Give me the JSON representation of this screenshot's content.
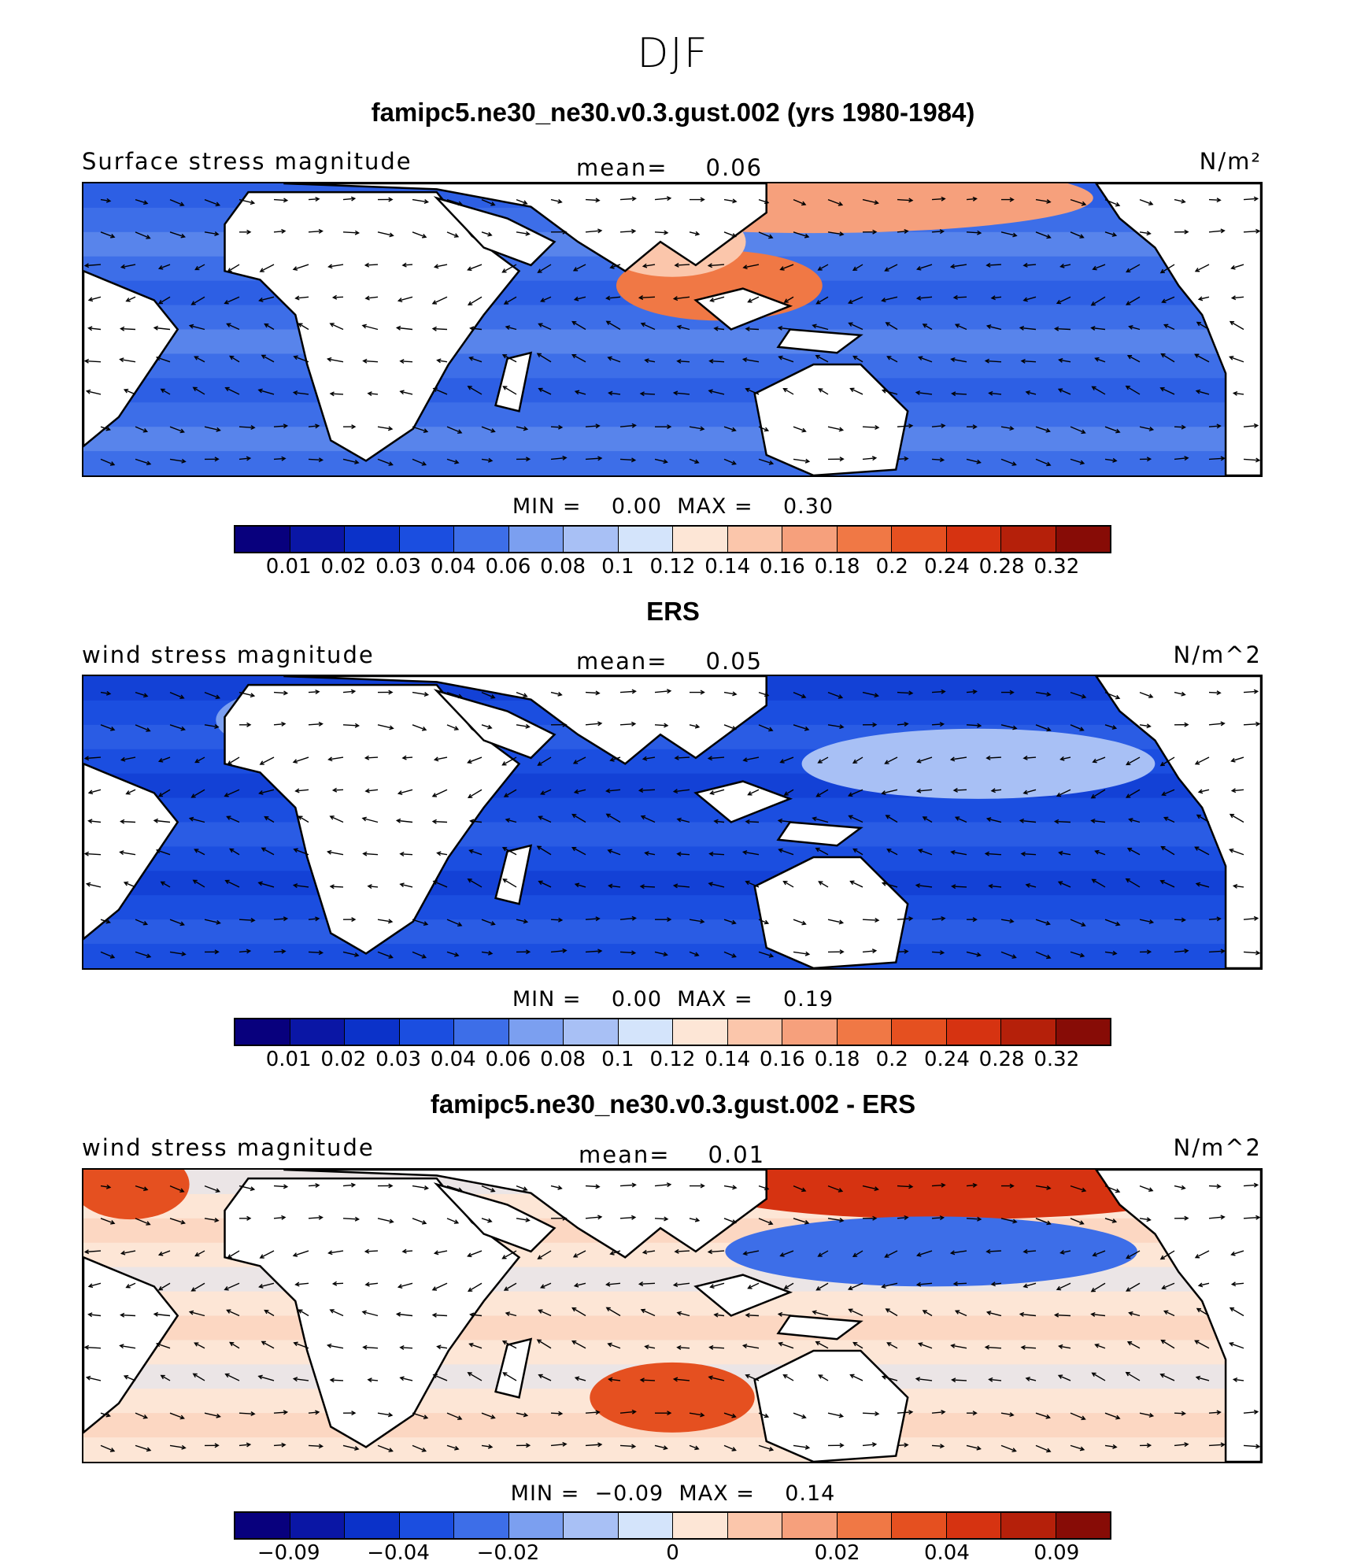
{
  "title": "DJF",
  "colors": [
    "#08007d",
    "#0a16a5",
    "#0b32c9",
    "#1b4ee0",
    "#3d6ee8",
    "#7b9ff0",
    "#a8c0f5",
    "#d4e4fb",
    "#fde6d6",
    "#fbc6ab",
    "#f6a07c",
    "#f07845",
    "#e55020",
    "#d63311",
    "#b5200a",
    "#870c06"
  ],
  "land_color": "#ffffff",
  "panels": [
    {
      "title": "famipc5.ne30_ne30.v0.3.gust.002 (yrs 1980-1984)",
      "field_label": "Surface stress magnitude",
      "mean_label": "mean=",
      "mean_value": "0.06",
      "units": "N/m²",
      "min_max": "MIN =    0.00  MAX =    0.30",
      "colorbar_ticks": [
        "0.01",
        "0.02",
        "0.03",
        "0.04",
        "0.06",
        "0.08",
        "0.1",
        "0.12",
        "0.14",
        "0.16",
        "0.18",
        "0.2",
        "0.24",
        "0.28",
        "0.32"
      ],
      "ocean_level": 4,
      "hotspots": [
        [
          0.62,
          0.05,
          0.95,
          10
        ],
        [
          0.54,
          0.35,
          0.35,
          11
        ],
        [
          0.5,
          0.2,
          0.25,
          9
        ]
      ]
    },
    {
      "title": "ERS",
      "field_label": "wind stress magnitude",
      "mean_label": "mean=",
      "mean_value": "0.05",
      "units": "N/m^2",
      "min_max": "MIN =    0.00  MAX =    0.19",
      "colorbar_ticks": [
        "0.01",
        "0.02",
        "0.03",
        "0.04",
        "0.06",
        "0.08",
        "0.1",
        "0.12",
        "0.14",
        "0.16",
        "0.18",
        "0.2",
        "0.24",
        "0.28",
        "0.32"
      ],
      "ocean_level": 3,
      "hotspots": [
        [
          0.76,
          0.3,
          0.6,
          6
        ],
        [
          0.2,
          0.15,
          0.35,
          5
        ]
      ]
    },
    {
      "title": "famipc5.ne30_ne30.v0.3.gust.002 - ERS",
      "field_label": "wind stress magnitude",
      "mean_label": "mean=",
      "mean_value": "0.01",
      "units": "N/m^2",
      "min_max": "MIN =  −0.09  MAX =    0.14",
      "colorbar_ticks": [
        "−0.09",
        "−0.04",
        "−0.02",
        "0",
        "0.02",
        "0.04",
        "0.09"
      ],
      "ocean_level": 8,
      "hotspots": [
        [
          0.74,
          0.05,
          0.9,
          13
        ],
        [
          0.72,
          0.28,
          0.7,
          4
        ],
        [
          0.04,
          0.05,
          0.2,
          12
        ],
        [
          0.5,
          0.78,
          0.28,
          12
        ]
      ]
    }
  ]
}
